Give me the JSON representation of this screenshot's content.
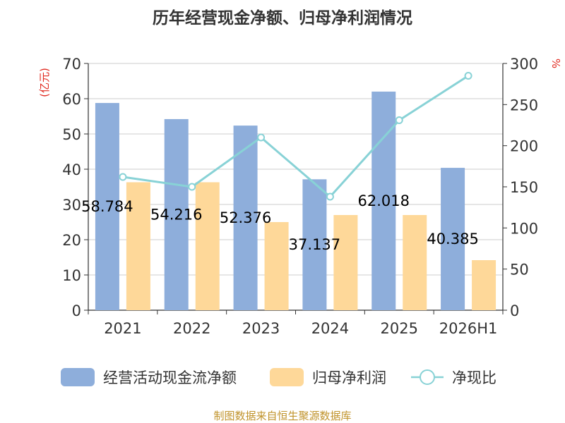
{
  "chart_data": {
    "type": "bar",
    "title": "历年经营现金净额、归母净利润情况",
    "categories": [
      "2021",
      "2022",
      "2023",
      "2024",
      "2025",
      "2026H1"
    ],
    "left_axis": {
      "label": "(亿元)",
      "ylim": [
        0,
        70
      ],
      "ticks": [
        "0",
        "10",
        "20",
        "30",
        "40",
        "50",
        "60",
        "70"
      ]
    },
    "right_axis": {
      "label": "%",
      "ylim": [
        0,
        300
      ],
      "ticks": [
        "0",
        "50",
        "100",
        "150",
        "200",
        "250",
        "300"
      ]
    },
    "series": [
      {
        "name": "经营活动现金流净额",
        "type": "bar",
        "axis": "left",
        "color": "#8eaedb",
        "values": [
          58.784,
          54.216,
          52.376,
          37.137,
          62.018,
          40.385
        ],
        "labels": [
          "58.784",
          "54.216",
          "52.376",
          "37.137",
          "62.018",
          "40.385"
        ]
      },
      {
        "name": "归母净利润",
        "type": "bar",
        "axis": "left",
        "color": "#fed899",
        "values": [
          36.3,
          36.3,
          25.0,
          27.0,
          27.0,
          14.2
        ]
      },
      {
        "name": "净现比",
        "type": "line",
        "axis": "right",
        "color": "#88d2d6",
        "values": [
          162,
          150,
          210,
          138,
          231,
          285
        ]
      }
    ],
    "legend_position": "bottom",
    "grid": true
  },
  "footer": {
    "source": "制图数据来自恒生聚源数据库"
  }
}
